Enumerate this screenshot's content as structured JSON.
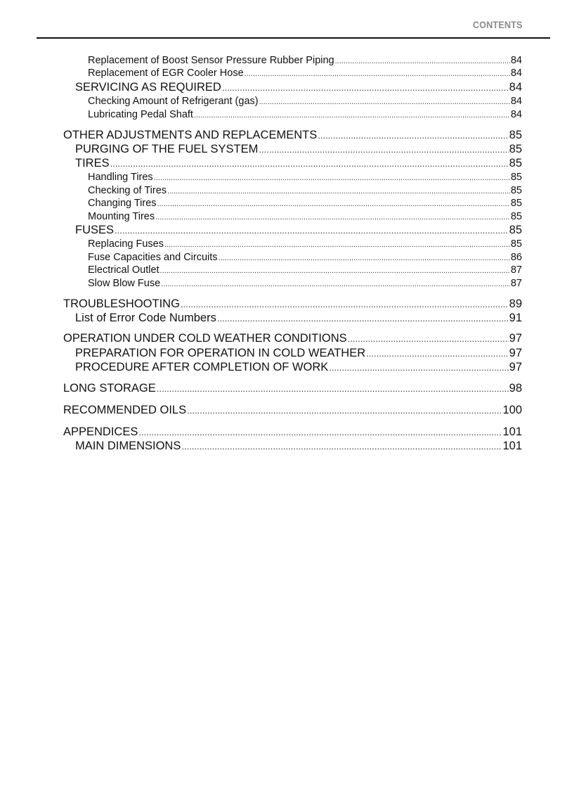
{
  "header": {
    "title": "CONTENTS"
  },
  "entries": [
    {
      "level": 3,
      "title": "Replacement of Boost Sensor Pressure Rubber Piping",
      "page": "84"
    },
    {
      "level": 3,
      "title": "Replacement of EGR Cooler Hose",
      "page": "84"
    },
    {
      "level": 2,
      "title": "SERVICING AS REQUIRED",
      "page": "84"
    },
    {
      "level": 3,
      "title": "Checking Amount of Refrigerant (gas)",
      "page": "84"
    },
    {
      "level": 3,
      "title": "Lubricating Pedal Shaft",
      "page": "84"
    },
    {
      "level": 1,
      "title": "OTHER ADJUSTMENTS AND REPLACEMENTS",
      "page": "85"
    },
    {
      "level": 2,
      "title": "PURGING OF THE FUEL SYSTEM",
      "page": "85"
    },
    {
      "level": 2,
      "title": "TIRES",
      "page": "85"
    },
    {
      "level": 3,
      "title": "Handling Tires",
      "page": "85"
    },
    {
      "level": 3,
      "title": "Checking of Tires",
      "page": "85"
    },
    {
      "level": 3,
      "title": "Changing Tires",
      "page": "85"
    },
    {
      "level": 3,
      "title": "Mounting Tires",
      "page": "85"
    },
    {
      "level": 2,
      "title": "FUSES",
      "page": "85"
    },
    {
      "level": 3,
      "title": "Replacing Fuses",
      "page": "85"
    },
    {
      "level": 3,
      "title": "Fuse Capacities and Circuits",
      "page": "86"
    },
    {
      "level": 3,
      "title": "Electrical Outlet",
      "page": "87"
    },
    {
      "level": 3,
      "title": "Slow Blow Fuse",
      "page": "87"
    },
    {
      "level": 1,
      "title": "TROUBLESHOOTING",
      "page": "89"
    },
    {
      "level": 2,
      "title": "List of Error Code Numbers",
      "page": "91"
    },
    {
      "level": 1,
      "title": "OPERATION UNDER COLD WEATHER CONDITIONS",
      "page": "97"
    },
    {
      "level": 2,
      "title": "PREPARATION FOR OPERATION IN COLD WEATHER",
      "page": "97"
    },
    {
      "level": 2,
      "title": "PROCEDURE AFTER COMPLETION OF WORK",
      "page": "97"
    },
    {
      "level": 1,
      "title": "LONG STORAGE",
      "page": "98"
    },
    {
      "level": 1,
      "title": "RECOMMENDED OILS",
      "page": "100"
    },
    {
      "level": 1,
      "title": "APPENDICES",
      "page": "101"
    },
    {
      "level": 2,
      "title": "MAIN DIMENSIONS",
      "page": "101"
    }
  ]
}
